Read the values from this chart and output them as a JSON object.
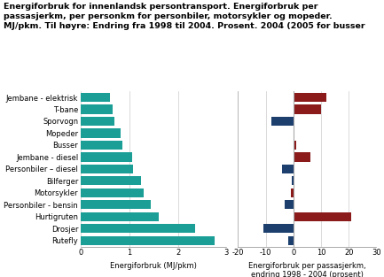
{
  "title_line1": "Energiforbruk for innenlandsk persontransport. Energiforbruk per",
  "title_line2": "passasjerkm, per personkm for personbiler, motorsykler og mopeder.",
  "title_line3": "MJ/pkm. Til høyre: Endring fra 1998 til 2004. Prosent. 2004 (2005 for busser",
  "categories": [
    "Jembane - elektrisk",
    "T-bane",
    "Sporvogn",
    "Mopeder",
    "Busser",
    "Jembane - diesel",
    "Personbiler – diesel",
    "Bilferger",
    "Motorsykler",
    "Personbiler - bensin",
    "Hurtigruten",
    "Drosjer",
    "Rutefly"
  ],
  "energy_values": [
    0.6,
    0.65,
    0.7,
    0.82,
    0.85,
    1.05,
    1.08,
    1.25,
    1.3,
    1.45,
    1.6,
    2.35,
    2.75
  ],
  "change_values": [
    12,
    10,
    -8,
    0.5,
    1,
    6,
    -4,
    -0.5,
    -1,
    -3,
    21,
    -11,
    -2
  ],
  "change_colors": [
    "#8B1A1A",
    "#8B1A1A",
    "#1C3F6E",
    "#8B1A1A",
    "#8B1A1A",
    "#8B1A1A",
    "#1C3F6E",
    "#1C3F6E",
    "#8B1A1A",
    "#1C3F6E",
    "#8B1A1A",
    "#1C3F6E",
    "#1C3F6E"
  ],
  "bar_color_left": "#1A9E96",
  "xlabel_left": "Energiforbruk (MJ/pkm)",
  "xlabel_right": "Energiforbruk per passasjerkm,\nendring 1998 - 2004 (prosent)",
  "xlim_left": [
    0,
    3
  ],
  "xlim_right": [
    -20,
    30
  ],
  "xticks_left": [
    0,
    1,
    2,
    3
  ],
  "xticks_right": [
    -20,
    -10,
    0,
    10,
    20,
    30
  ],
  "background_color": "#ffffff",
  "grid_color": "#cccccc",
  "title_fontsize": 6.8,
  "tick_fontsize": 6.0,
  "label_fontsize": 6.0
}
